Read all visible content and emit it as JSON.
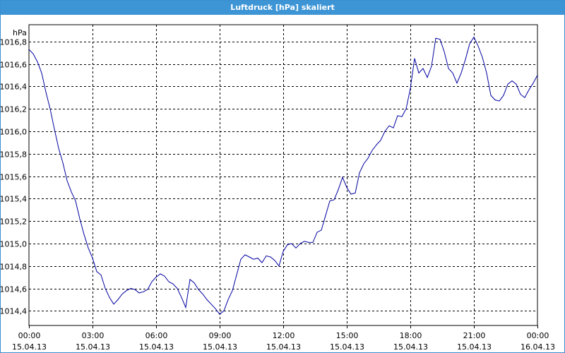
{
  "window": {
    "title": "Luftdruck [hPa] skaliert"
  },
  "chart_data": {
    "type": "line",
    "title": "Luftdruck [hPa] skaliert",
    "ylabel": "hPa",
    "xlabel": "",
    "ylim": [
      1014.27,
      1016.95
    ],
    "xlim": [
      0,
      24
    ],
    "grid": true,
    "colors": {
      "line": "#0000a0",
      "grid": "#000000"
    },
    "y_ticks": [
      "1016,8",
      "1016,6",
      "1016,4",
      "1016,2",
      "1016,0",
      "1015,8",
      "1015,6",
      "1015,4",
      "1015,2",
      "1015,0",
      "1014,8",
      "1014,6",
      "1014,4"
    ],
    "y_tick_values": [
      1016.8,
      1016.6,
      1016.4,
      1016.2,
      1016.0,
      1015.8,
      1015.6,
      1015.4,
      1015.2,
      1015.0,
      1014.8,
      1014.6,
      1014.4
    ],
    "x_ticks": [
      {
        "time": "00:00",
        "date": "15.04.13"
      },
      {
        "time": "03:00",
        "date": "15.04.13"
      },
      {
        "time": "06:00",
        "date": "15.04.13"
      },
      {
        "time": "09:00",
        "date": "15.04.13"
      },
      {
        "time": "12:00",
        "date": "15.04.13"
      },
      {
        "time": "15:00",
        "date": "15.04.13"
      },
      {
        "time": "18:00",
        "date": "15.04.13"
      },
      {
        "time": "21:00",
        "date": "15.04.13"
      },
      {
        "time": "00:00",
        "date": "16.04.13"
      }
    ],
    "x_tick_values": [
      0,
      3,
      6,
      9,
      12,
      15,
      18,
      21,
      24
    ],
    "series": [
      {
        "x": [
          0,
          0.2,
          0.4,
          0.6,
          0.8,
          1.0,
          1.2,
          1.4,
          1.6,
          1.8,
          2.0,
          2.2,
          2.4,
          2.6,
          2.8,
          3.0,
          3.2,
          3.4,
          3.6,
          3.8,
          4.0,
          4.2,
          4.4,
          4.6,
          4.8,
          5.0,
          5.2,
          5.4,
          5.6,
          5.8,
          6.0,
          6.2,
          6.4,
          6.6,
          6.8,
          7.0,
          7.2,
          7.4,
          7.6,
          7.8,
          8.0,
          8.2,
          8.4,
          8.6,
          8.8,
          9.0,
          9.2,
          9.4,
          9.6,
          9.8,
          10.0,
          10.2,
          10.4,
          10.6,
          10.8,
          11.0,
          11.2,
          11.4,
          11.6,
          11.8,
          12.0,
          12.2,
          12.4,
          12.6,
          12.8,
          13.0,
          13.2,
          13.4,
          13.6,
          13.8,
          14.0,
          14.2,
          14.4,
          14.6,
          14.8,
          15.0,
          15.2,
          15.4,
          15.6,
          15.8,
          16.0,
          16.2,
          16.4,
          16.6,
          16.8,
          17.0,
          17.2,
          17.4,
          17.6,
          17.8,
          18.0,
          18.2,
          18.4,
          18.6,
          18.8,
          19.0,
          19.2,
          19.4,
          19.6,
          19.8,
          20.0,
          20.2,
          20.4,
          20.6,
          20.8,
          21.0,
          21.2,
          21.4,
          21.6,
          21.8,
          22.0,
          22.2,
          22.4,
          22.6,
          22.8,
          23.0,
          23.2,
          23.4,
          23.6,
          23.8,
          24.0
        ],
        "y": [
          1016.73,
          1016.69,
          1016.62,
          1016.52,
          1016.35,
          1016.2,
          1016.02,
          1015.85,
          1015.72,
          1015.56,
          1015.46,
          1015.38,
          1015.22,
          1015.08,
          1014.96,
          1014.87,
          1014.75,
          1014.72,
          1014.6,
          1014.52,
          1014.46,
          1014.5,
          1014.55,
          1014.58,
          1014.6,
          1014.59,
          1014.56,
          1014.57,
          1014.59,
          1014.66,
          1014.7,
          1014.73,
          1014.71,
          1014.66,
          1014.64,
          1014.6,
          1014.52,
          1014.43,
          1014.68,
          1014.65,
          1014.59,
          1014.55,
          1014.5,
          1014.46,
          1014.42,
          1014.37,
          1014.4,
          1014.5,
          1014.58,
          1014.72,
          1014.86,
          1014.9,
          1014.88,
          1014.86,
          1014.87,
          1014.83,
          1014.89,
          1014.88,
          1014.85,
          1014.8,
          1014.93,
          1014.99,
          1015.0,
          1014.96,
          1015.0,
          1015.02,
          1015.01,
          1015.01,
          1015.1,
          1015.12,
          1015.25,
          1015.38,
          1015.39,
          1015.48,
          1015.59,
          1015.5,
          1015.44,
          1015.45,
          1015.63,
          1015.71,
          1015.76,
          1015.83,
          1015.88,
          1015.92,
          1016.0,
          1016.05,
          1016.03,
          1016.14,
          1016.13,
          1016.2,
          1016.38,
          1016.65,
          1016.52,
          1016.56,
          1016.48,
          1016.58,
          1016.83,
          1016.82,
          1016.71,
          1016.56,
          1016.52,
          1016.43,
          1016.52,
          1016.64,
          1016.78,
          1016.84,
          1016.76,
          1016.66,
          1016.52,
          1016.32,
          1016.28,
          1016.27,
          1016.32,
          1016.42,
          1016.45,
          1016.42,
          1016.33,
          1016.3,
          1016.37,
          1016.43,
          1016.5
        ]
      }
    ]
  }
}
